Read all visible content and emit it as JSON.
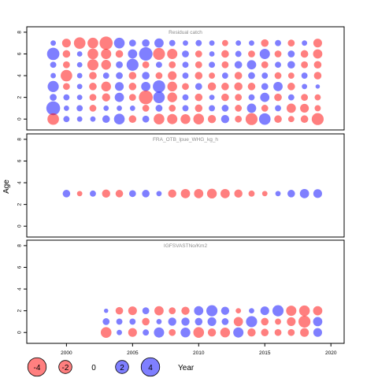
{
  "chart_data": {
    "type": "bubble",
    "ylabel": "Age",
    "xlabel": "Year",
    "xlim": [
      1997,
      2021
    ],
    "xticks": [
      2000,
      2005,
      2010,
      2015,
      2020
    ],
    "colors": {
      "positive": "#0000ff",
      "negative": "#ff0000"
    },
    "legend": {
      "position": "bottom-left",
      "entries": [
        {
          "label": "-4",
          "value": -4
        },
        {
          "label": "-2",
          "value": -2
        },
        {
          "label": "0",
          "value": 0
        },
        {
          "label": "2",
          "value": 2
        },
        {
          "label": "4",
          "value": 4
        }
      ],
      "title": "Year"
    },
    "panels": [
      {
        "title": "Residual catch",
        "ylim": [
          -1,
          8.5
        ],
        "yticks": [
          0,
          2,
          4,
          6,
          8
        ],
        "years": [
          1999,
          2000,
          2001,
          2002,
          2003,
          2004,
          2005,
          2006,
          2007,
          2008,
          2009,
          2010,
          2011,
          2012,
          2013,
          2014,
          2015,
          2016,
          2017,
          2018,
          2019
        ],
        "ages": [
          7,
          6,
          5,
          4,
          3,
          2,
          1,
          0
        ],
        "residuals": [
          [
            0.3,
            -0.8,
            -1.4,
            -1.2,
            -1.8,
            1.2,
            0.5,
            0.6,
            0.9,
            0.4,
            0.3,
            0.4,
            0.3,
            -0.4,
            0.3,
            0.3,
            -0.6,
            0.4,
            -0.5,
            0.3,
            -0.8
          ],
          [
            1.6,
            -0.6,
            0.3,
            -1.2,
            -1.1,
            -0.6,
            0.9,
            1.9,
            -1.5,
            -1.1,
            0.5,
            -0.5,
            0.3,
            -0.6,
            0.4,
            -0.5,
            1.1,
            -0.5,
            0.5,
            -0.6,
            -0.9
          ],
          [
            0.4,
            -0.5,
            0.3,
            -1.3,
            -1.0,
            0.5,
            1.5,
            -0.5,
            0.4,
            -0.5,
            0.4,
            -0.5,
            0.4,
            -0.5,
            0.6,
            0.9,
            -0.5,
            0.4,
            0.6,
            -0.5,
            -0.6
          ],
          [
            0.3,
            -1.4,
            0.3,
            -0.6,
            0.4,
            0.5,
            -0.6,
            0.6,
            -0.5,
            -0.8,
            0.4,
            -0.6,
            -0.4,
            0.4,
            -0.6,
            0.5,
            0.4,
            -0.5,
            -0.4,
            0.4,
            -0.6
          ],
          [
            1.3,
            -0.5,
            0.3,
            -0.6,
            -1.0,
            0.8,
            -0.6,
            0.9,
            1.6,
            -1.0,
            -0.5,
            0.5,
            -0.7,
            -0.6,
            -0.7,
            -0.6,
            0.5,
            0.9,
            -0.6,
            0.3,
            0.2
          ],
          [
            0.5,
            0.4,
            0.3,
            -0.5,
            -0.7,
            0.9,
            -0.5,
            -2.0,
            1.4,
            -1.0,
            0.4,
            -0.6,
            0.3,
            -0.6,
            -0.5,
            0.4,
            0.9,
            -0.6,
            0.4,
            -0.5,
            -0.4
          ],
          [
            2.0,
            0.3,
            0.4,
            -0.5,
            0.3,
            0.3,
            0.3,
            -0.5,
            0.5,
            -0.5,
            0.4,
            -0.6,
            0.4,
            0.5,
            -0.5,
            0.9,
            -0.5,
            0.4,
            -0.9,
            -0.8,
            -0.4
          ],
          [
            -1.4,
            0.4,
            0.3,
            0.3,
            0.6,
            1.2,
            -0.6,
            0.5,
            -1.2,
            -1.1,
            -1.0,
            -1.2,
            -0.7,
            0.7,
            -0.5,
            -1.5,
            1.4,
            -0.6,
            -0.4,
            -0.6,
            -1.5
          ]
        ]
      },
      {
        "title": "FRA_OTB_lpue_WHG_kg_h",
        "ylim": [
          -1,
          8.5
        ],
        "yticks": [
          0,
          2,
          4,
          6,
          8
        ],
        "years": [
          2000,
          2001,
          2002,
          2003,
          2004,
          2005,
          2006,
          2007,
          2008,
          2009,
          2010,
          2011,
          2012,
          2013,
          2014,
          2015,
          2016,
          2017,
          2018,
          2019
        ],
        "ages": [
          3
        ],
        "residuals": [
          [
            0.6,
            -0.3,
            0.4,
            -0.7,
            -0.6,
            0.5,
            0.6,
            0.3,
            -0.7,
            -0.9,
            -0.9,
            -1.0,
            -0.9,
            -0.7,
            -0.4,
            -0.3,
            0.3,
            0.6,
            0.9,
            0.8
          ]
        ]
      },
      {
        "title": "IGFSVASTNo/Km2",
        "ylim": [
          -1,
          8.5
        ],
        "yticks": [
          0,
          2,
          4,
          6,
          8
        ],
        "years": [
          2003,
          2004,
          2005,
          2006,
          2007,
          2008,
          2009,
          2010,
          2011,
          2012,
          2013,
          2014,
          2015,
          2016,
          2017,
          2018,
          2019
        ],
        "ages": [
          2,
          1,
          0
        ],
        "residuals": [
          [
            0.2,
            -0.6,
            -0.8,
            0.5,
            -0.9,
            -0.5,
            -0.7,
            0.9,
            1.3,
            0.7,
            -0.3,
            0.3,
            0.8,
            1.3,
            -1.1,
            -1.2,
            -0.9
          ],
          [
            0.5,
            0.4,
            0.4,
            -0.6,
            0.3,
            0.7,
            0.7,
            0.6,
            0.8,
            0.5,
            -0.9,
            1.3,
            -0.6,
            -0.4,
            -0.8,
            -1.5,
            0.9
          ],
          [
            -1.2,
            0.3,
            -0.8,
            0.4,
            1.1,
            -0.5,
            1.0,
            -1.2,
            -0.7,
            -1.0,
            1.1,
            -0.7,
            -0.6,
            -0.5,
            -0.5,
            -0.8,
            0.8
          ]
        ]
      }
    ]
  }
}
